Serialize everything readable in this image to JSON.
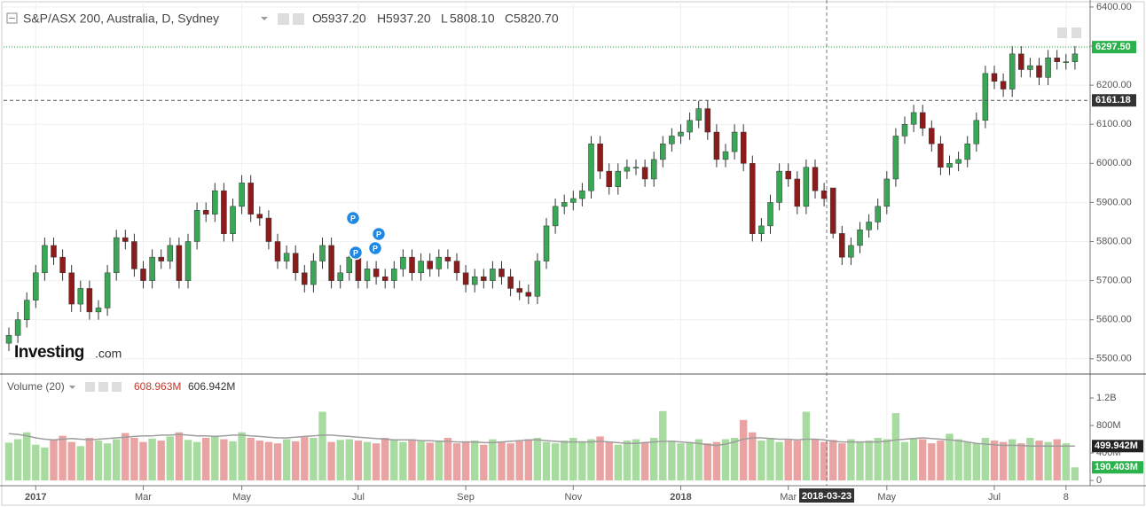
{
  "chart_data": [
    {
      "type": "candlestick",
      "title": "S&P/ASX 200, Australia, D, Sydney",
      "ohlc_legend": [
        {
          "label": "O",
          "value": {
            "value": 5937.2,
            "label": "5937.20"
          }
        },
        {
          "label": "H",
          "value": {
            "value": 5937.2,
            "label": "5937.20"
          }
        },
        {
          "label": "L",
          "value": {
            "value": 5808.1,
            "label": "5808.10"
          }
        },
        {
          "label": "C",
          "value": {
            "value": 5820.7,
            "label": "5820.70"
          }
        }
      ],
      "categories": [
        null,
        null,
        null,
        "2017",
        null,
        null,
        null,
        null,
        null,
        null,
        null,
        null,
        null,
        null,
        null,
        "Mar",
        null,
        null,
        null,
        null,
        null,
        null,
        null,
        null,
        null,
        null,
        "May",
        null,
        null,
        null,
        null,
        null,
        null,
        null,
        null,
        null,
        null,
        null,
        null,
        "Jul",
        null,
        null,
        null,
        null,
        null,
        null,
        null,
        null,
        null,
        null,
        null,
        "Sep",
        null,
        null,
        null,
        null,
        null,
        null,
        null,
        null,
        null,
        null,
        null,
        "Nov",
        null,
        null,
        null,
        null,
        null,
        null,
        null,
        null,
        null,
        null,
        null,
        "2018",
        null,
        null,
        null,
        null,
        null,
        null,
        null,
        null,
        null,
        null,
        null,
        "Mar",
        null,
        null,
        null,
        null,
        null,
        null,
        null,
        null,
        null,
        null,
        "May",
        null,
        null,
        null,
        null,
        null,
        null,
        null,
        null,
        null,
        null,
        null,
        "Jul",
        null,
        null,
        null,
        null,
        null,
        null,
        null,
        "8",
        null
      ],
      "open": [
        5540,
        5560,
        5600,
        5650,
        5720,
        5790,
        5760,
        5720,
        5640,
        5680,
        5620,
        5630,
        5720,
        5810,
        5800,
        5730,
        5700,
        5760,
        5750,
        5790,
        5700,
        5800,
        5880,
        5870,
        5930,
        5820,
        5890,
        5950,
        5870,
        5860,
        5800,
        5750,
        5770,
        5720,
        5690,
        5750,
        5790,
        5700,
        5720,
        5760,
        5700,
        5730,
        5710,
        5700,
        5730,
        5760,
        5720,
        5750,
        5730,
        5760,
        5750,
        5720,
        5690,
        5710,
        5700,
        5730,
        5710,
        5680,
        5670,
        5660,
        5750,
        5840,
        5890,
        5900,
        5910,
        5930,
        6050,
        5980,
        5940,
        5980,
        5990,
        5990,
        5960,
        6010,
        6050,
        6070,
        6080,
        6110,
        6140,
        6080,
        6010,
        6030,
        6080,
        6000,
        5820,
        5840,
        5900,
        5980,
        5960,
        5890,
        5990,
        5930,
        5937.2,
        5820.7,
        5760,
        5790,
        5830,
        5850,
        5890,
        5960,
        6070,
        6100,
        6130,
        6090,
        6050,
        5990,
        6000,
        6010,
        6050,
        6110,
        6230,
        6210,
        6190,
        6280,
        6240,
        6250,
        6220,
        6270,
        6260,
        6260
      ],
      "high": [
        5580,
        5620,
        5670,
        5740,
        5810,
        5810,
        5780,
        5740,
        5700,
        5700,
        5650,
        5740,
        5830,
        5830,
        5820,
        5750,
        5780,
        5780,
        5810,
        5810,
        5820,
        5900,
        5900,
        5950,
        5950,
        5910,
        5970,
        5970,
        5890,
        5880,
        5820,
        5790,
        5790,
        5740,
        5770,
        5810,
        5810,
        5740,
        5780,
        5780,
        5750,
        5750,
        5730,
        5750,
        5780,
        5780,
        5770,
        5770,
        5780,
        5780,
        5770,
        5740,
        5730,
        5730,
        5750,
        5750,
        5730,
        5700,
        5690,
        5770,
        5860,
        5910,
        5920,
        5930,
        5950,
        6070,
        6070,
        6000,
        6000,
        6010,
        6010,
        6010,
        6030,
        6070,
        6090,
        6100,
        6130,
        6160,
        6160,
        6100,
        6050,
        6100,
        6100,
        6020,
        5860,
        5920,
        6000,
        6000,
        5980,
        6010,
        6010,
        5950,
        5937.2,
        5840,
        5810,
        5850,
        5870,
        5910,
        5980,
        6090,
        6120,
        6150,
        6150,
        6110,
        6070,
        6020,
        6030,
        6070,
        6130,
        6250,
        6250,
        6230,
        6300,
        6300,
        6270,
        6270,
        6290,
        6290,
        6280,
        6300
      ],
      "low": [
        5520,
        5540,
        5580,
        5630,
        5700,
        5740,
        5700,
        5620,
        5620,
        5600,
        5600,
        5610,
        5700,
        5780,
        5710,
        5680,
        5680,
        5730,
        5730,
        5680,
        5680,
        5780,
        5850,
        5850,
        5800,
        5800,
        5870,
        5850,
        5840,
        5780,
        5730,
        5730,
        5700,
        5670,
        5670,
        5730,
        5680,
        5680,
        5700,
        5680,
        5680,
        5690,
        5680,
        5680,
        5710,
        5700,
        5700,
        5710,
        5710,
        5730,
        5700,
        5670,
        5670,
        5680,
        5680,
        5690,
        5660,
        5650,
        5640,
        5640,
        5730,
        5820,
        5870,
        5880,
        5890,
        5910,
        5960,
        5920,
        5920,
        5960,
        5970,
        5940,
        5940,
        5990,
        6030,
        6050,
        6060,
        6090,
        6060,
        5990,
        5990,
        6010,
        5980,
        5800,
        5800,
        5820,
        5880,
        5940,
        5870,
        5870,
        5910,
        5890,
        5808.1,
        5740,
        5740,
        5770,
        5810,
        5830,
        5870,
        5940,
        6050,
        6080,
        6070,
        6030,
        5970,
        5970,
        5980,
        5990,
        6030,
        6090,
        6190,
        6170,
        6170,
        6220,
        6220,
        6200,
        6200,
        6240,
        6240,
        6240
      ],
      "close": [
        5560,
        5600,
        5650,
        5720,
        5790,
        5760,
        5720,
        5640,
        5680,
        5620,
        5630,
        5720,
        5810,
        5800,
        5730,
        5700,
        5760,
        5750,
        5790,
        5700,
        5800,
        5880,
        5870,
        5930,
        5820,
        5890,
        5950,
        5870,
        5860,
        5800,
        5750,
        5770,
        5720,
        5690,
        5750,
        5790,
        5700,
        5720,
        5760,
        5700,
        5730,
        5710,
        5700,
        5730,
        5760,
        5720,
        5750,
        5730,
        5760,
        5750,
        5720,
        5690,
        5710,
        5700,
        5730,
        5710,
        5680,
        5670,
        5660,
        5750,
        5840,
        5890,
        5900,
        5910,
        5930,
        6050,
        5980,
        5940,
        5980,
        5990,
        5990,
        5960,
        6010,
        6050,
        6070,
        6080,
        6110,
        6140,
        6080,
        6010,
        6030,
        6080,
        6000,
        5820,
        5840,
        5900,
        5980,
        5960,
        5890,
        5990,
        5930,
        5910,
        5820.7,
        5760,
        5790,
        5830,
        5850,
        5890,
        5960,
        6070,
        6100,
        6130,
        6090,
        6050,
        5990,
        6000,
        6010,
        6050,
        6110,
        6230,
        6210,
        6190,
        6280,
        6240,
        6250,
        6220,
        6270,
        6260,
        6260,
        6280
      ],
      "up_color": "#3aa757",
      "down_color": "#8c1c1c",
      "ylim": [
        5461,
        6418
      ],
      "yticks": [
        {
          "value": 5500,
          "label": "5500.00"
        },
        {
          "value": 5600,
          "label": "5600.00"
        },
        {
          "value": 5700,
          "label": "5700.00"
        },
        {
          "value": 5800,
          "label": "5800.00"
        },
        {
          "value": 5900,
          "label": "5900.00"
        },
        {
          "value": 6000,
          "label": "6000.00"
        },
        {
          "value": 6100,
          "label": "6100.00"
        },
        {
          "value": 6200,
          "label": "6200.00"
        },
        {
          "value": 6300,
          "label": "6300.00"
        },
        {
          "value": 6400,
          "label": "6400.00"
        }
      ],
      "grid": true,
      "last_price": {
        "value": 6297.5,
        "label": "6297.50"
      },
      "crosshair": {
        "date": "2018-03-23",
        "price": {
          "value": 6161.18,
          "label": "6161.18"
        }
      },
      "markers": [
        {
          "label": "P"
        },
        {
          "label": "P"
        },
        {
          "label": "P"
        },
        {
          "label": "P"
        }
      ],
      "logo": {
        "main": "Investing",
        "suffix": ".com"
      }
    },
    {
      "type": "bar",
      "title": "Volume (20)",
      "legend_values": [
        {
          "value": 608.963,
          "label": "608.963M",
          "color": "#c0392b"
        },
        {
          "value": 606.942,
          "label": "606.942M",
          "color": "#333333"
        }
      ],
      "values": [
        550,
        600,
        700,
        520,
        480,
        600,
        650,
        560,
        500,
        620,
        580,
        540,
        600,
        690,
        620,
        560,
        610,
        580,
        640,
        700,
        590,
        560,
        620,
        650,
        600,
        570,
        700,
        620,
        580,
        560,
        540,
        600,
        570,
        630,
        620,
        1000,
        560,
        590,
        600,
        580,
        560,
        540,
        620,
        590,
        560,
        600,
        570,
        550,
        580,
        620,
        540,
        560,
        580,
        520,
        600,
        560,
        540,
        570,
        600,
        620,
        560,
        540,
        580,
        620,
        570,
        600,
        640,
        560,
        520,
        580,
        600,
        560,
        620,
        1010,
        580,
        540,
        560,
        600,
        540,
        560,
        600,
        620,
        880,
        700,
        580,
        620,
        560,
        590,
        580,
        1000,
        600,
        560,
        590,
        540,
        600,
        560,
        580,
        620,
        600,
        980,
        560,
        620,
        600,
        540,
        580,
        680,
        600,
        560,
        540,
        620,
        580,
        560,
        600,
        540,
        620,
        580,
        560,
        600,
        540,
        190.403
      ],
      "ma": [
        680,
        670,
        650,
        620,
        600,
        590,
        600,
        610,
        600,
        590,
        600,
        610,
        620,
        630,
        640,
        650,
        650,
        660,
        660,
        670,
        660,
        650,
        650,
        640,
        650,
        660,
        660,
        650,
        640,
        630,
        620,
        620,
        630,
        640,
        650,
        660,
        660,
        650,
        640,
        630,
        620,
        610,
        600,
        590,
        590,
        590,
        580,
        580,
        570,
        570,
        560,
        560,
        560,
        550,
        550,
        560,
        570,
        580,
        590,
        590,
        580,
        570,
        560,
        560,
        560,
        560,
        570,
        560,
        550,
        540,
        540,
        550,
        560,
        570,
        570,
        560,
        550,
        540,
        520,
        510,
        530,
        560,
        600,
        620,
        620,
        610,
        600,
        600,
        590,
        600,
        600,
        590,
        570,
        560,
        560,
        560,
        560,
        560,
        570,
        590,
        600,
        610,
        620,
        610,
        600,
        590,
        580,
        560,
        540,
        530,
        520,
        510,
        510,
        510,
        500,
        500,
        500,
        500,
        500,
        499.942
      ],
      "up_color": "#a8dba0",
      "down_color": "#e9a3a3",
      "ma_color": "#9e9e9e",
      "ylim": [
        -77,
        1510
      ],
      "yticks": [
        0,
        {
          "value": 400,
          "label": "400M"
        },
        {
          "value": 800,
          "label": "800M"
        },
        {
          "value": 1200,
          "label": "1.2B"
        }
      ],
      "badges": [
        {
          "value": 499.942,
          "label": "499.942M",
          "color": "#222222"
        },
        {
          "value": 190.403,
          "label": "190.403M",
          "color": "#2bb24c"
        }
      ]
    }
  ]
}
